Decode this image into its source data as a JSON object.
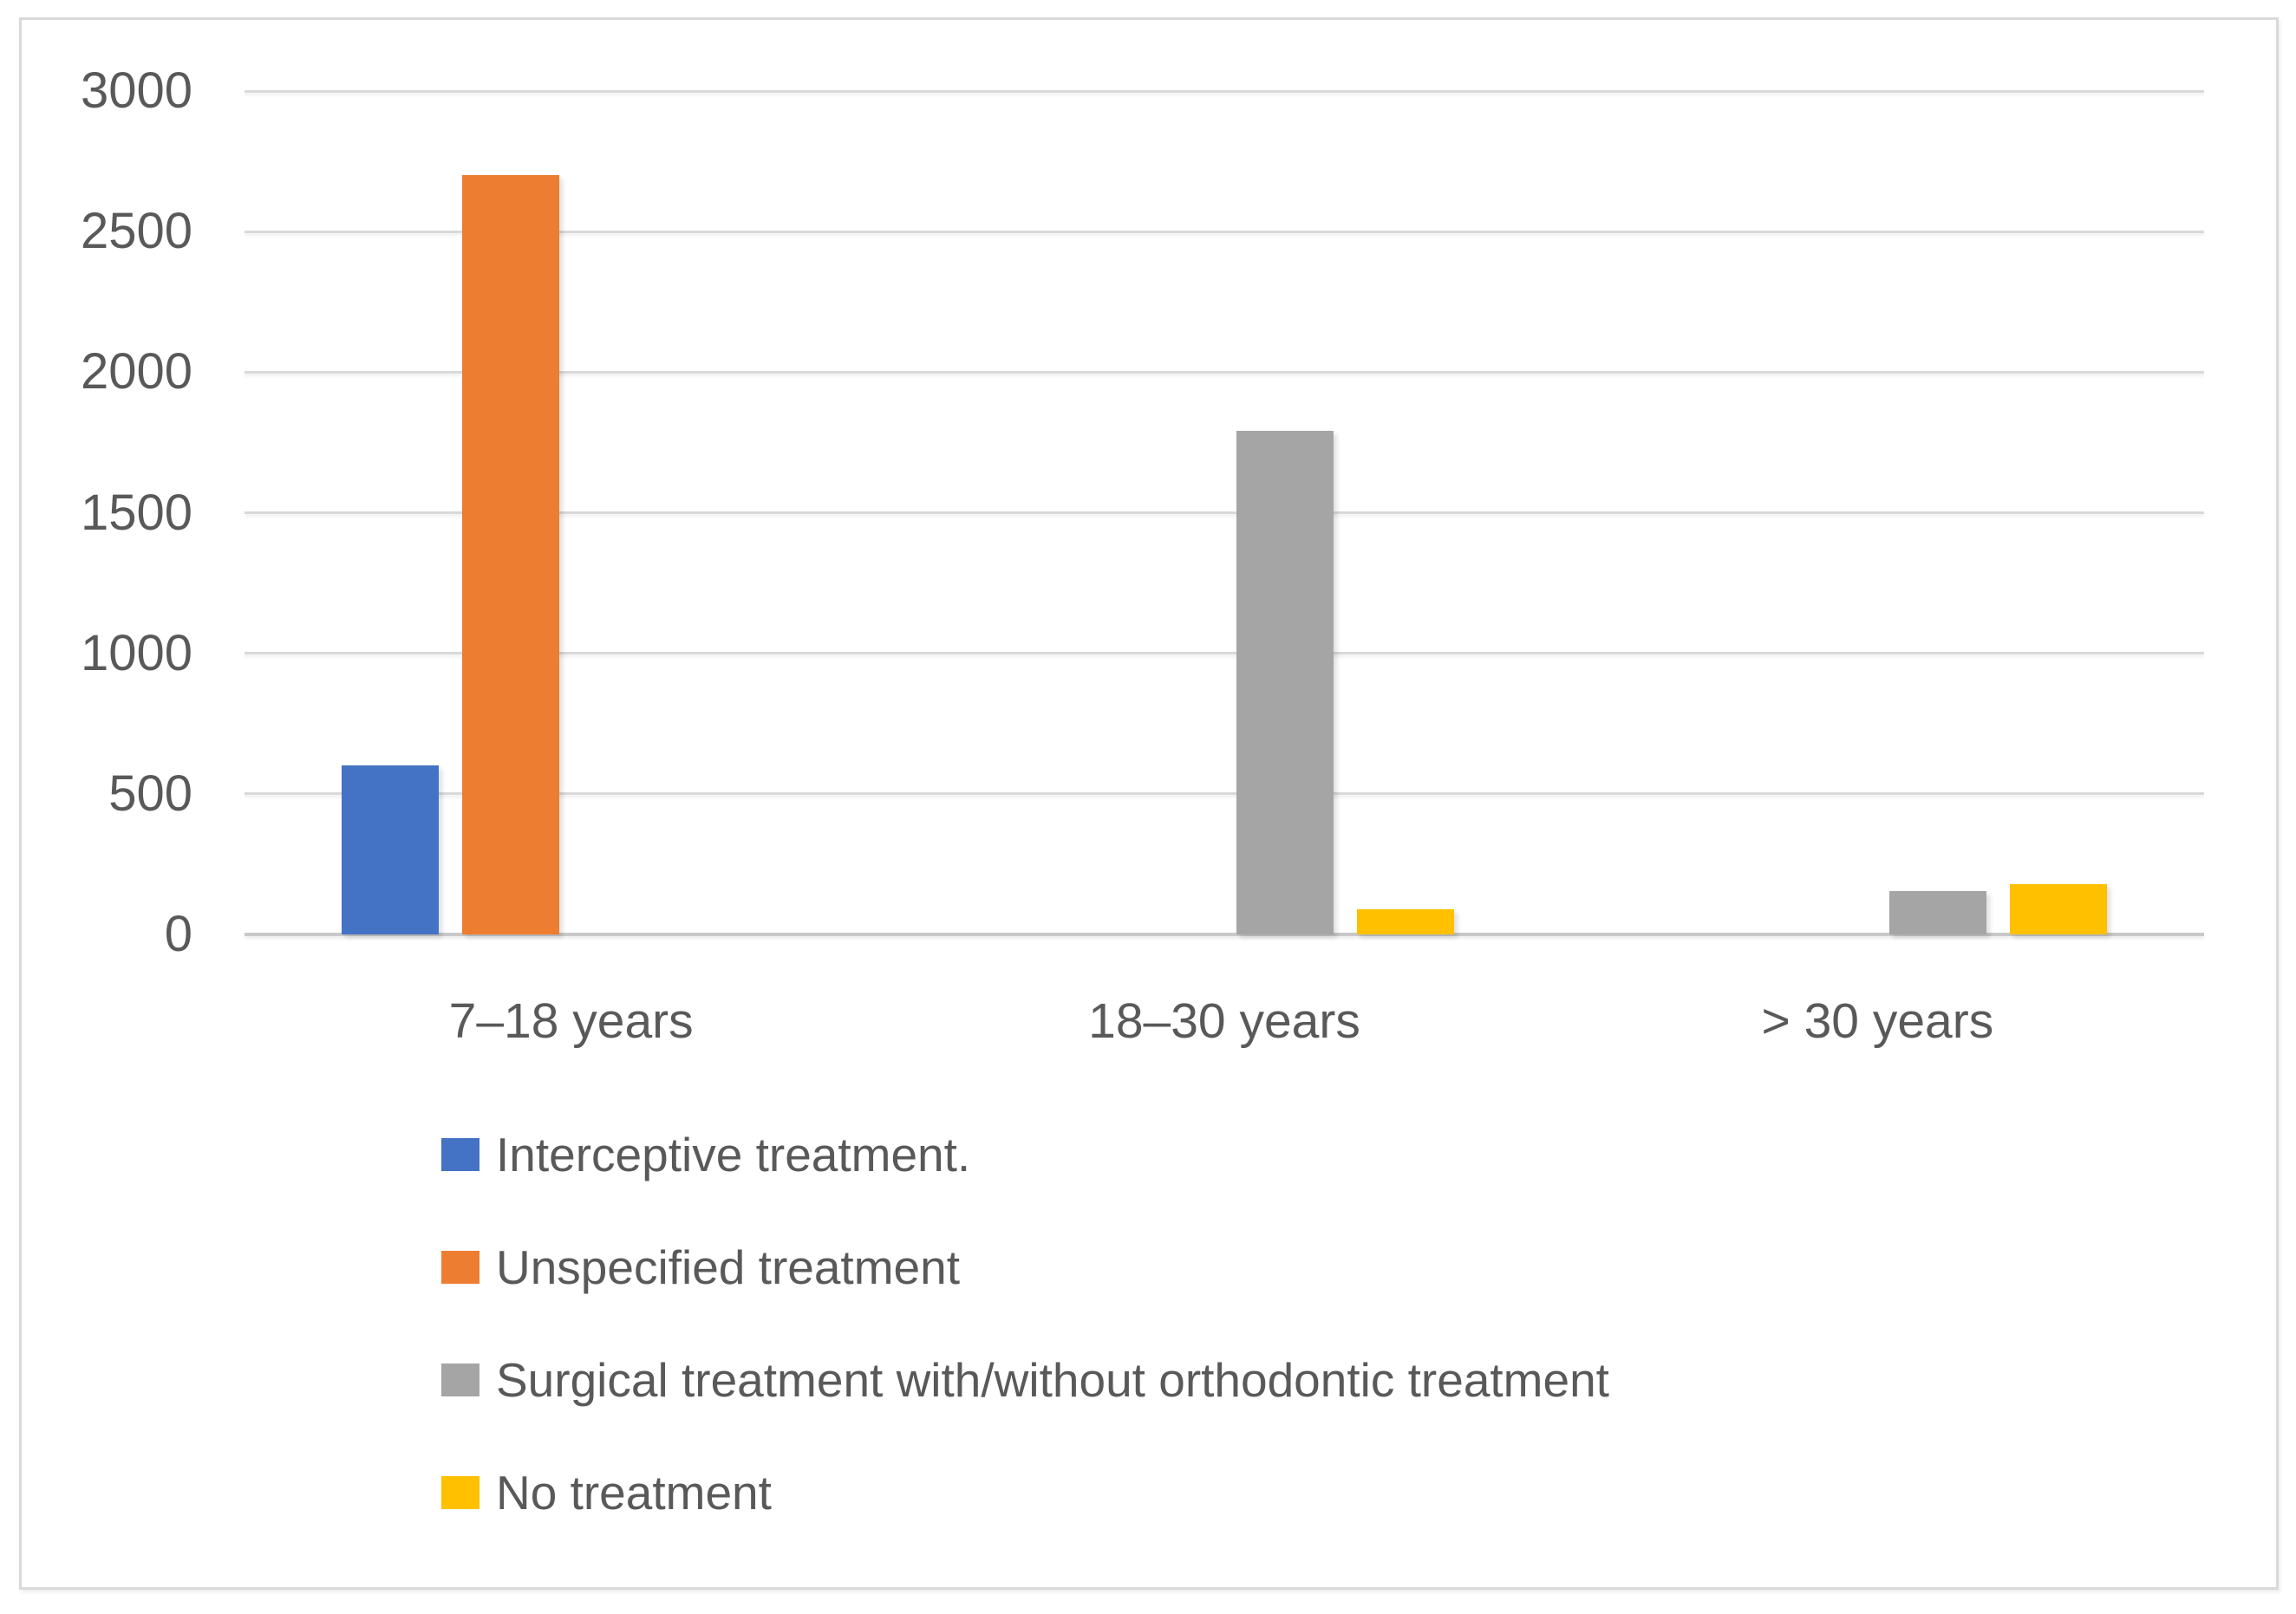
{
  "figure": {
    "kind": "clustered-column-chart",
    "background_color": "#ffffff",
    "border_color": "#d9d9d9"
  },
  "chart_data": {
    "type": "bar",
    "title": "",
    "xlabel": "",
    "ylabel": "",
    "categories": [
      "7–18 years",
      "18–30 years",
      "> 30 years"
    ],
    "series": [
      {
        "name": "Interceptive treatment.",
        "color": "#4472C4",
        "values": [
          600,
          0,
          0
        ]
      },
      {
        "name": "Unspecified treatment",
        "color": "#ED7D31",
        "values": [
          2700,
          0,
          0
        ]
      },
      {
        "name": "Surgical treatment with/without orthodontic treatment",
        "color": "#A5A5A5",
        "values": [
          0,
          1790,
          155
        ]
      },
      {
        "name": "No treatment",
        "color": "#FFC000",
        "values": [
          0,
          90,
          180
        ]
      }
    ],
    "ylim": [
      0,
      3000
    ],
    "yticks": [
      0,
      500,
      1000,
      1500,
      2000,
      2500,
      3000
    ],
    "grid": true,
    "gridline_color": "#d9d9d9",
    "axis_text_color": "#595959",
    "legend_position": "bottom-left"
  }
}
